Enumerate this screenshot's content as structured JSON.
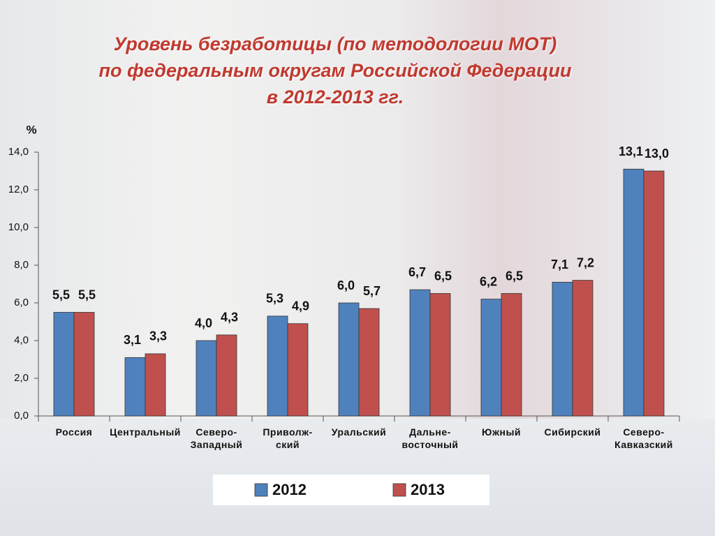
{
  "chart_data": {
    "type": "bar",
    "title": "Уровень безработицы (по методологии МОТ)\nпо федеральным округам Российской Федерации\nв 2012-2013 гг.",
    "y_label": "%",
    "categories": [
      "Россия",
      "Центральный",
      "Северо-\nЗападный",
      "Приволж-\nский",
      "Уральский",
      "Дальне-\nвосточный",
      "Южный",
      "Сибирский",
      "Северо-\nКавказский"
    ],
    "series": [
      {
        "name": "2012",
        "color": "#4f81bd",
        "values": [
          5.5,
          3.1,
          4.0,
          5.3,
          6.0,
          6.7,
          6.2,
          7.1,
          13.1
        ],
        "value_labels": [
          "5,5",
          "3,1",
          "4,0",
          "5,3",
          "6,0",
          "6,7",
          "6,2",
          "7,1",
          "13,1"
        ]
      },
      {
        "name": "2013",
        "color": "#c0504d",
        "values": [
          5.5,
          3.3,
          4.3,
          4.9,
          5.7,
          6.5,
          6.5,
          7.2,
          13.0
        ],
        "value_labels": [
          "5,5",
          "3,3",
          "4,3",
          "4,9",
          "5,7",
          "6,5",
          "6,5",
          "7,2",
          "13,0"
        ]
      }
    ],
    "ylim": [
      0,
      14
    ],
    "yticks": [
      {
        "value": 0,
        "label": "0,0"
      },
      {
        "value": 2,
        "label": "2,0"
      },
      {
        "value": 4,
        "label": "4,0"
      },
      {
        "value": 6,
        "label": "6,0"
      },
      {
        "value": 8,
        "label": "8,0"
      },
      {
        "value": 10,
        "label": "10,0"
      },
      {
        "value": 12,
        "label": "12,0"
      },
      {
        "value": 14,
        "label": "14,0"
      }
    ],
    "grid": false,
    "legend": "bottom"
  }
}
